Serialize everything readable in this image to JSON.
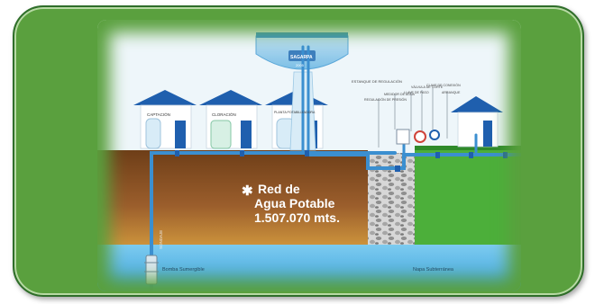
{
  "diagram": {
    "title_line1": "Red de",
    "title_line2": "Agua Potable",
    "network_length": "1.507.070 mts.",
    "asterisk": "✱",
    "tank_brand_line1": "SAGARPA",
    "tank_brand_line2": "2005",
    "houses": [
      {
        "label": "CAPTACIÓN"
      },
      {
        "label": "CLORACIÓN"
      },
      {
        "label": "PLANTA POTABILIZADORA"
      }
    ],
    "tank_label": "ESTANQUE DE REGULACIÓN",
    "callouts": [
      "REGULACIÓN DE PRESIÓN",
      "MEDIDOR DE AGUA",
      "LLAVE DE PASO",
      "VÁLVULA DE CORTE",
      "CLAVE DE CONEXIÓN",
      "ARRANQUE"
    ],
    "well_label": "SONDAJE",
    "pump_label": "Bomba Sumergible",
    "groundwater_label": "Napa Subterránea",
    "colors": {
      "frame": "#5aa03e",
      "sky": "#e9f3f8",
      "soil": "#7a4a22",
      "aquifer": "#5bb8e8",
      "roof": "#1f5fae",
      "pipe": "#3b8fd0",
      "grass": "#4caf3a"
    }
  }
}
